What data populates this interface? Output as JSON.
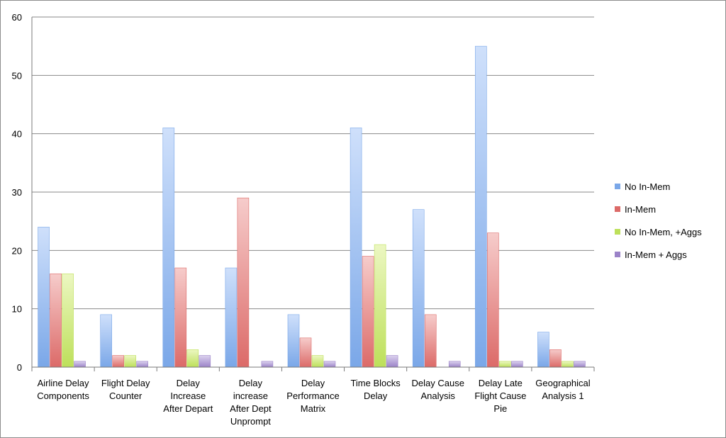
{
  "chart_data": {
    "type": "bar",
    "categories": [
      [
        "Airline Delay",
        "Components"
      ],
      [
        "Flight Delay",
        "Counter"
      ],
      [
        "Delay",
        "Increase",
        "After Depart"
      ],
      [
        "Delay",
        "increase",
        "After Dept",
        "Unprompt"
      ],
      [
        "Delay",
        "Performance",
        "Matrix"
      ],
      [
        "Time Blocks",
        "Delay"
      ],
      [
        "Delay Cause",
        "Analysis"
      ],
      [
        "Delay Late",
        "Flight Cause",
        "Pie"
      ],
      [
        "Geographical",
        "Analysis 1"
      ]
    ],
    "series": [
      {
        "name": "No In-Mem",
        "color": "#7aa7e8",
        "light": "#cfe0fb",
        "values": [
          24,
          9,
          41,
          17,
          9,
          41,
          27,
          55,
          6
        ]
      },
      {
        "name": "In-Mem",
        "color": "#dc6a68",
        "light": "#f6cccb",
        "values": [
          16,
          2,
          17,
          29,
          5,
          19,
          9,
          23,
          3
        ]
      },
      {
        "name": "No In-Mem, +Aggs",
        "color": "#bde05a",
        "light": "#ecf7c2",
        "values": [
          16,
          2,
          3,
          0,
          2,
          21,
          0,
          1,
          1
        ]
      },
      {
        "name": "In-Mem + Aggs",
        "color": "#9b83c8",
        "light": "#dcd2ee",
        "values": [
          1,
          1,
          2,
          1,
          1,
          2,
          1,
          1,
          1
        ]
      }
    ],
    "yticks": [
      0,
      10,
      20,
      30,
      40,
      50,
      60
    ],
    "ylim": [
      0,
      60
    ],
    "grid": true,
    "legend_position": "right"
  }
}
